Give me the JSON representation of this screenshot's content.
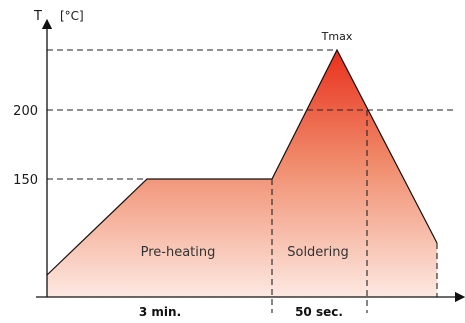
{
  "diagram": {
    "y_axis_label": "T",
    "y_axis_unit": "[°C]",
    "y_ticks": [
      "150",
      "200"
    ],
    "peak_label": "Tmax",
    "zones": [
      {
        "label": "Pre-heating",
        "duration": "3 min."
      },
      {
        "label": "Soldering",
        "duration": "50 sec."
      }
    ],
    "colors": {
      "fill_top": "#e8301c",
      "fill_mid": "#f08a6a",
      "fill_bottom": "#fde9e2",
      "line": "#111111",
      "dashes": "#222222"
    }
  }
}
